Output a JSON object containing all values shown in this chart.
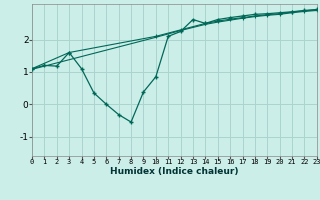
{
  "xlabel": "Humidex (Indice chaleur)",
  "bg_color": "#cceee8",
  "grid_color": "#aad4ce",
  "line_color": "#006858",
  "x_ticks": [
    0,
    1,
    2,
    3,
    4,
    5,
    6,
    7,
    8,
    9,
    10,
    11,
    12,
    13,
    14,
    15,
    16,
    17,
    18,
    19,
    20,
    21,
    22,
    23
  ],
  "xlim": [
    0,
    23
  ],
  "ylim": [
    -1.6,
    3.1
  ],
  "y_ticks": [
    -1,
    0,
    1,
    2
  ],
  "series1_x": [
    0,
    1,
    2,
    3,
    4,
    5,
    6,
    7,
    8,
    9,
    10,
    11,
    12,
    13,
    14,
    15,
    16,
    17,
    18,
    19,
    20,
    21,
    22,
    23
  ],
  "series1_y": [
    1.1,
    1.2,
    1.18,
    1.6,
    1.1,
    0.35,
    0.0,
    -0.32,
    -0.55,
    0.38,
    0.85,
    2.1,
    2.25,
    2.62,
    2.5,
    2.62,
    2.68,
    2.73,
    2.78,
    2.8,
    2.83,
    2.86,
    2.9,
    2.93
  ],
  "series2_x": [
    0,
    3,
    10,
    12,
    14,
    15,
    16,
    17,
    18,
    19,
    20,
    21,
    22,
    23
  ],
  "series2_y": [
    1.1,
    1.6,
    2.1,
    2.3,
    2.5,
    2.57,
    2.63,
    2.68,
    2.73,
    2.77,
    2.8,
    2.85,
    2.89,
    2.92
  ],
  "series3_x": [
    0,
    10,
    12,
    14,
    15,
    16,
    17,
    18,
    19,
    20,
    21,
    22,
    23
  ],
  "series3_y": [
    1.08,
    2.07,
    2.28,
    2.47,
    2.54,
    2.6,
    2.66,
    2.71,
    2.75,
    2.78,
    2.83,
    2.87,
    2.9
  ]
}
